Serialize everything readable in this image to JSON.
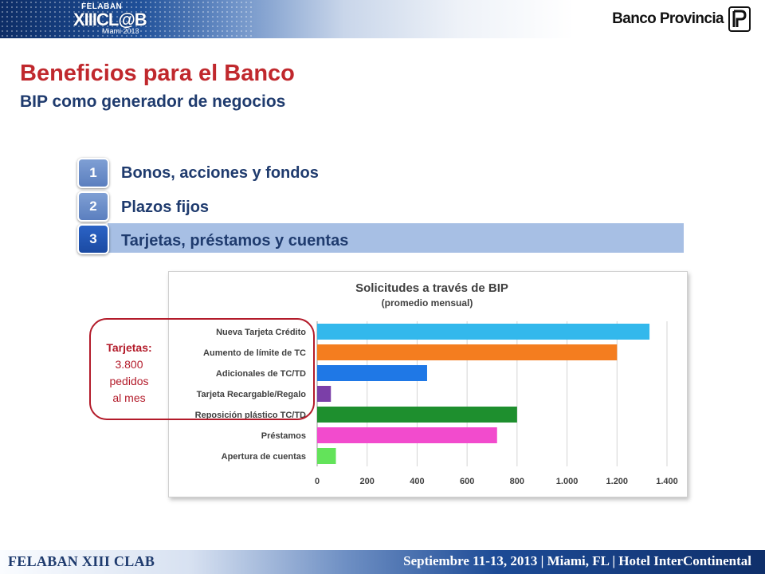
{
  "header": {
    "felaban_top": "FELABAN",
    "felaban_name": "XIIICL@B",
    "felaban_place": "Miami 2013",
    "bank_name": "Banco Provincia"
  },
  "slide": {
    "title": "Beneficios para el Banco",
    "subtitle": "BIP como generador de negocios"
  },
  "items": [
    {
      "number": "1",
      "label": "Bonos, acciones y fondos",
      "active": false
    },
    {
      "number": "2",
      "label": "Plazos fijos",
      "active": false
    },
    {
      "number": "3",
      "label": "Tarjetas, préstamos y cuentas",
      "active": true
    }
  ],
  "callout": {
    "line1": "Tarjetas:",
    "line2": "3.800",
    "line3": "pedidos",
    "line4": "al mes"
  },
  "chart_data": {
    "type": "bar",
    "orientation": "horizontal",
    "title": "Solicitudes a través de BIP",
    "subtitle": "(promedio mensual)",
    "categories": [
      "Nueva Tarjeta Crédito",
      "Aumento de límite de TC",
      "Adicionales de TC/TD",
      "Tarjeta Recargable/Regalo",
      "Reposición plástico TC/TD",
      "Préstamos",
      "Apertura de cuentas"
    ],
    "values": [
      1330,
      1200,
      440,
      55,
      800,
      720,
      75
    ],
    "colors": [
      "#33b8ec",
      "#f47d1f",
      "#1f78e6",
      "#7b3fa8",
      "#1e8f2e",
      "#f24bcd",
      "#63e35a"
    ],
    "xlim": [
      0,
      1400
    ],
    "xticks": [
      "0",
      "200",
      "400",
      "600",
      "800",
      "1.000",
      "1.200",
      "1.400"
    ],
    "grid": true,
    "legend": "none"
  },
  "footer": {
    "left": "FELABAN XIII CLAB",
    "right": "Septiembre 11-13, 2013 | Miami, FL | Hotel InterContinental"
  }
}
